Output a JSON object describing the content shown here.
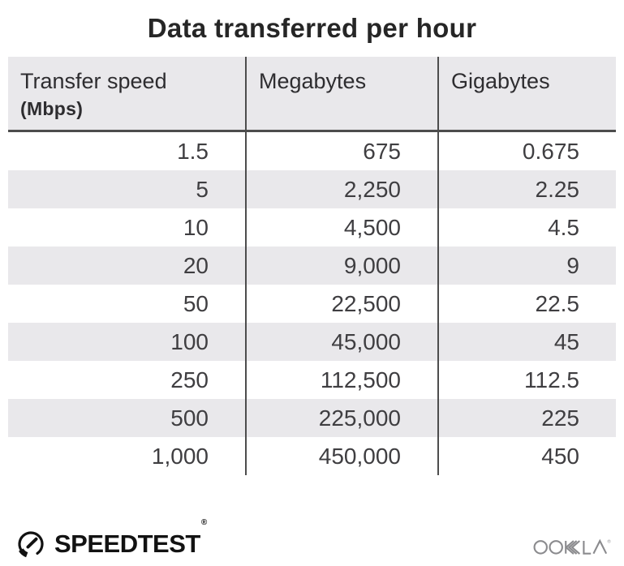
{
  "title": "Data transferred per hour",
  "table": {
    "columns": [
      {
        "label": "Transfer speed",
        "sublabel": "(Mbps)"
      },
      {
        "label": "Megabytes",
        "sublabel": ""
      },
      {
        "label": "Gigabytes",
        "sublabel": ""
      }
    ],
    "rows": [
      [
        "1.5",
        "675",
        "0.675"
      ],
      [
        "5",
        "2,250",
        "2.25"
      ],
      [
        "10",
        "4,500",
        "4.5"
      ],
      [
        "20",
        "9,000",
        "9"
      ],
      [
        "50",
        "22,500",
        "22.5"
      ],
      [
        "100",
        "45,000",
        "45"
      ],
      [
        "250",
        "112,500",
        "112.5"
      ],
      [
        "500",
        "225,000",
        "225"
      ],
      [
        "1,000",
        "450,000",
        "450"
      ]
    ]
  },
  "chart_data": {
    "type": "table",
    "title": "Data transferred per hour",
    "columns": [
      "Transfer speed (Mbps)",
      "Megabytes",
      "Gigabytes"
    ],
    "rows": [
      [
        1.5,
        675,
        0.675
      ],
      [
        5,
        2250,
        2.25
      ],
      [
        10,
        4500,
        4.5
      ],
      [
        20,
        9000,
        9
      ],
      [
        50,
        22500,
        22.5
      ],
      [
        100,
        45000,
        45
      ],
      [
        250,
        112500,
        112.5
      ],
      [
        500,
        225000,
        225
      ],
      [
        1000,
        450000,
        450
      ]
    ]
  },
  "footer": {
    "speedtest_label": "SPEEDTEST",
    "speedtest_registered": "®",
    "ookla_label": "OOKLA",
    "ookla_registered": "®"
  },
  "colors": {
    "header_bg": "#e9e8eb",
    "row_stripe": "#e9e8eb",
    "divider": "#4d4d4d",
    "body_text": "#3f3e41",
    "header_text": "#2e2d30",
    "title_text": "#262626",
    "speedtest_black": "#121212",
    "ookla_gray": "#8b8b8e"
  }
}
